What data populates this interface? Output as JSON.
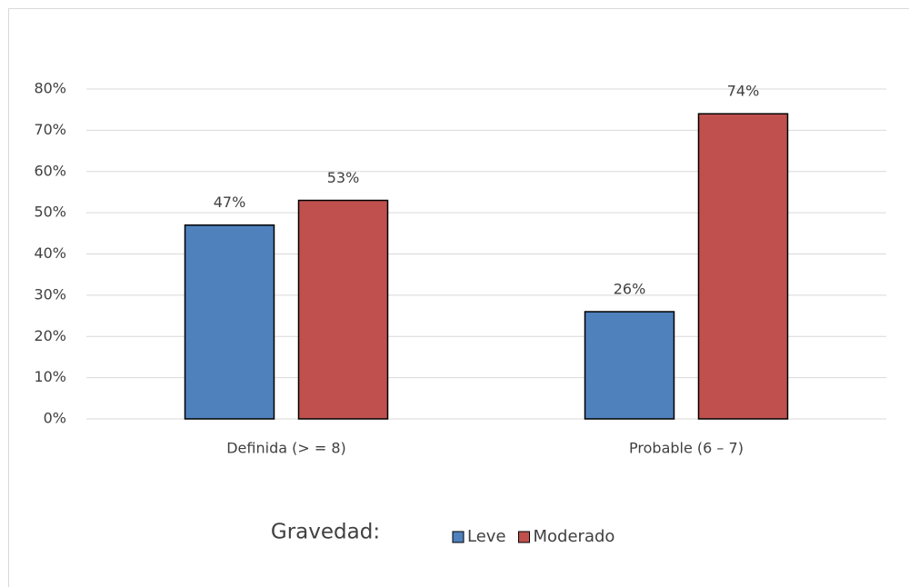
{
  "chart_data": {
    "type": "bar",
    "categories": [
      "Definida (> = 8)",
      "Probable (6 – 7)"
    ],
    "series": [
      {
        "name": "Leve",
        "color": "#4f81bd",
        "values": [
          47,
          26
        ],
        "value_labels": [
          "47%",
          "26%"
        ]
      },
      {
        "name": "Moderado",
        "color": "#c0504d",
        "values": [
          53,
          74
        ],
        "value_labels": [
          "53%",
          "74%"
        ]
      }
    ],
    "legend_title": "Gravedad:",
    "ylim": [
      0,
      80
    ],
    "yticks": [
      {
        "value": 0,
        "label": "0%"
      },
      {
        "value": 10,
        "label": "10%"
      },
      {
        "value": 20,
        "label": "20%"
      },
      {
        "value": 30,
        "label": "30%"
      },
      {
        "value": 40,
        "label": "40%"
      },
      {
        "value": 50,
        "label": "50%"
      },
      {
        "value": 60,
        "label": "60%"
      },
      {
        "value": 70,
        "label": "70%"
      },
      {
        "value": 80,
        "label": "80%"
      }
    ],
    "grid": true,
    "legend": "bottom"
  }
}
